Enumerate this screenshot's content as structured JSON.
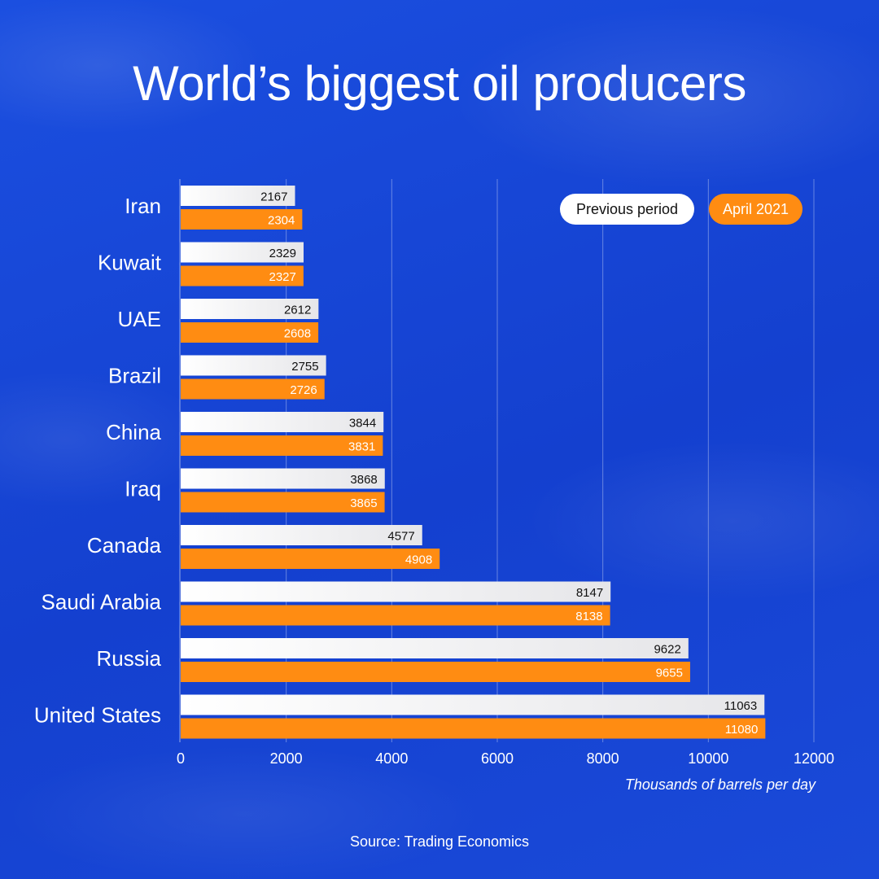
{
  "title": "World’s biggest oil producers",
  "source": "Source: Trading Economics",
  "chart_data": {
    "type": "bar",
    "orientation": "horizontal",
    "title": "World’s biggest oil producers",
    "categories": [
      "Iran",
      "Kuwait",
      "UAE",
      "Brazil",
      "China",
      "Iraq",
      "Canada",
      "Saudi Arabia",
      "Russia",
      "United States"
    ],
    "series": [
      {
        "name": "Previous period",
        "values": [
          2167,
          2329,
          2612,
          2755,
          3844,
          3868,
          4577,
          8147,
          9622,
          11063
        ],
        "color": "#ffffff"
      },
      {
        "name": "April 2021",
        "values": [
          2304,
          2327,
          2608,
          2726,
          3831,
          3865,
          4908,
          8138,
          9655,
          11080
        ],
        "color": "#ff8c12"
      }
    ],
    "xlabel": "Thousands of barrels per day",
    "ylabel": "",
    "xlim": [
      0,
      12000
    ],
    "xticks": [
      0,
      2000,
      4000,
      6000,
      8000,
      10000,
      12000
    ],
    "grid": "vertical",
    "legend": "top-right"
  }
}
